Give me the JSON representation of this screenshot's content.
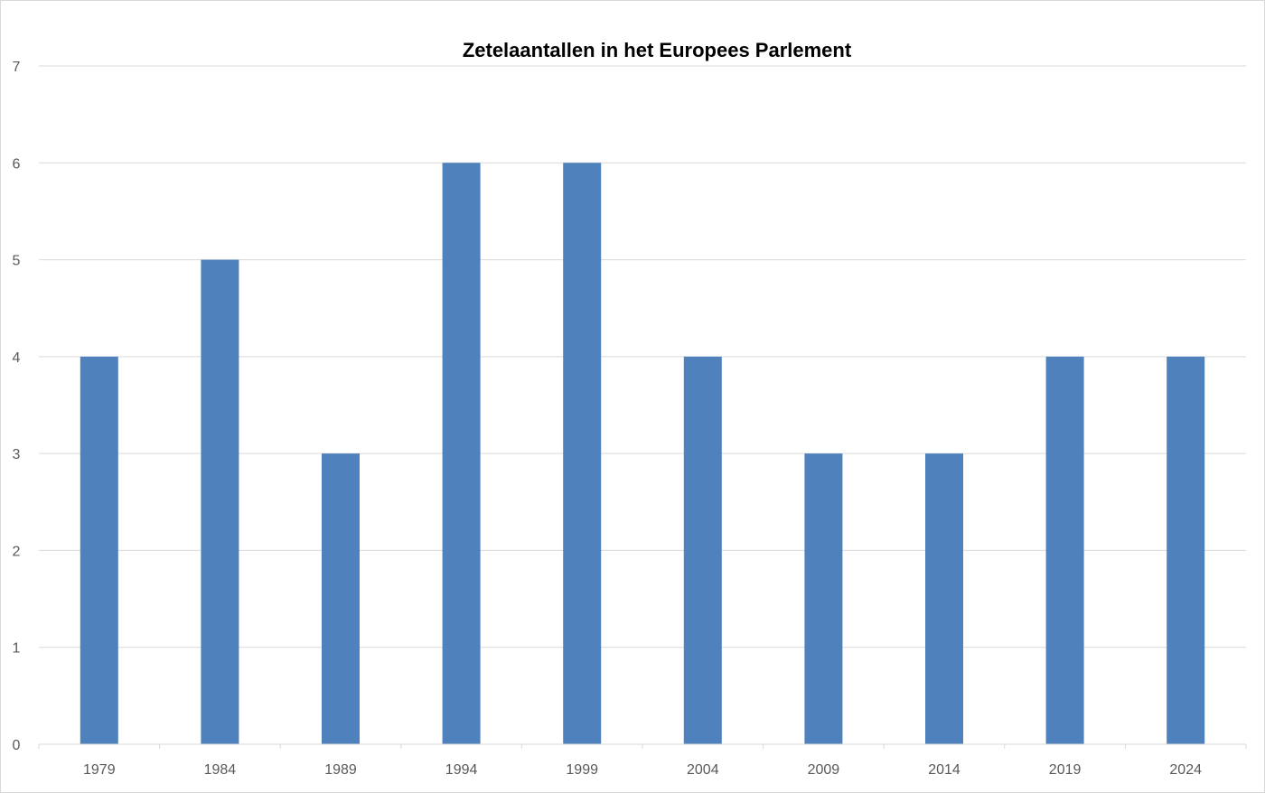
{
  "chart_data": {
    "type": "bar",
    "title": "Zetelaantallen in het Europees Parlement",
    "xlabel": "",
    "ylabel": "",
    "categories": [
      "1979",
      "1984",
      "1989",
      "1994",
      "1999",
      "2004",
      "2009",
      "2014",
      "2019",
      "2024"
    ],
    "values": [
      4,
      5,
      3,
      6,
      6,
      4,
      3,
      3,
      4,
      4
    ],
    "ylim": [
      0,
      7
    ],
    "yticks": [
      "0",
      "1",
      "2",
      "3",
      "4",
      "5",
      "6",
      "7"
    ],
    "grid": true,
    "legend": "none",
    "bar_color": "#4f81bd",
    "grid_color": "#d9d9d9"
  }
}
